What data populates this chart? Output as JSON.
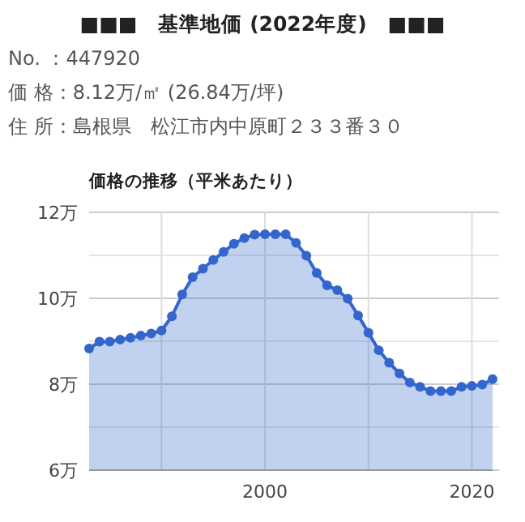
{
  "chart_data": {
    "type": "area",
    "title": "■■■　基準地価 (2022年度)　■■■",
    "annotations": [
      "No. ：447920",
      "価 格：8.12万/㎡ (26.84万/坪)",
      "住 所：島根県　松江市内中原町２３３番３０"
    ],
    "subtitle": "価格の推移（平米あたり）",
    "x": [
      1983,
      1984,
      1985,
      1986,
      1987,
      1988,
      1989,
      1990,
      1991,
      1992,
      1993,
      1994,
      1995,
      1996,
      1997,
      1998,
      1999,
      2000,
      2001,
      2002,
      2003,
      2004,
      2005,
      2006,
      2007,
      2008,
      2009,
      2010,
      2011,
      2012,
      2013,
      2014,
      2015,
      2016,
      2017,
      2018,
      2019,
      2020,
      2021,
      2022
    ],
    "series": [
      {
        "color": "#3366cc",
        "values": [
          8.83,
          8.99,
          8.99,
          9.04,
          9.08,
          9.13,
          9.18,
          9.25,
          9.58,
          10.09,
          10.49,
          10.69,
          10.89,
          11.08,
          11.27,
          11.4,
          11.48,
          11.49,
          11.49,
          11.49,
          11.29,
          10.99,
          10.59,
          10.3,
          10.19,
          9.99,
          9.6,
          9.2,
          8.79,
          8.5,
          8.25,
          8.04,
          7.94,
          7.84,
          7.84,
          7.84,
          7.94,
          7.96,
          7.99,
          8.12
        ]
      }
    ],
    "xlim": [
      1983,
      2022
    ],
    "xticks": [
      {
        "value": 1990,
        "label": null
      },
      2000,
      {
        "value": 2010,
        "label": null
      },
      2020
    ],
    "ylim": [
      6,
      12
    ],
    "yticks": [
      {
        "value": 6,
        "label": "6万"
      },
      {
        "value": 7,
        "label": null
      },
      {
        "value": 8,
        "label": "8万"
      },
      {
        "value": 9,
        "label": null
      },
      {
        "value": 10,
        "label": "10万"
      },
      {
        "value": 11,
        "label": null
      },
      {
        "value": 12,
        "label": "12万"
      }
    ],
    "grid": true,
    "marker": "circle",
    "line_style": "solid"
  }
}
